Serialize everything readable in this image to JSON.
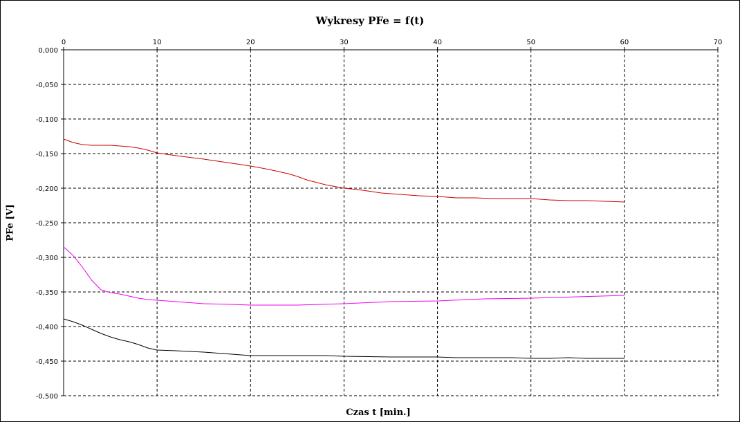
{
  "chart_data": {
    "type": "line",
    "title": "Wykresy PFe = f(t)",
    "xlabel": "Czas t  [min.]",
    "ylabel": "PFe  [V]",
    "xlim": [
      0,
      70
    ],
    "ylim": [
      -0.5,
      0
    ],
    "x_ticks": [
      "0",
      "10",
      "20",
      "30",
      "40",
      "50",
      "60",
      "70"
    ],
    "y_ticks": [
      "0,000",
      "-0,050",
      "-0,100",
      "-0,150",
      "-0,200",
      "-0,250",
      "-0,300",
      "-0,350",
      "-0,400",
      "-0,450",
      "-0,500"
    ],
    "grid": true,
    "x_axis_position": "top",
    "series": [
      {
        "color": "#cc0000",
        "x": [
          0,
          1,
          2,
          3,
          4,
          5,
          6,
          7,
          8,
          9,
          10,
          12,
          15,
          18,
          20,
          22,
          24,
          25,
          26,
          28,
          30,
          32,
          34,
          36,
          38,
          40,
          42,
          44,
          46,
          48,
          50,
          52,
          54,
          56,
          58,
          60
        ],
        "y": [
          -0.129,
          -0.134,
          -0.137,
          -0.138,
          -0.138,
          -0.138,
          -0.139,
          -0.14,
          -0.142,
          -0.145,
          -0.149,
          -0.153,
          -0.158,
          -0.164,
          -0.168,
          -0.173,
          -0.179,
          -0.183,
          -0.188,
          -0.195,
          -0.2,
          -0.203,
          -0.207,
          -0.209,
          -0.211,
          -0.212,
          -0.214,
          -0.214,
          -0.215,
          -0.215,
          -0.215,
          -0.217,
          -0.218,
          -0.218,
          -0.219,
          -0.22
        ]
      },
      {
        "color": "#ee00ee",
        "x": [
          0,
          1,
          2,
          3,
          4,
          5,
          6,
          7,
          8,
          9,
          10,
          12,
          15,
          18,
          20,
          25,
          30,
          35,
          40,
          45,
          50,
          55,
          60
        ],
        "y": [
          -0.285,
          -0.297,
          -0.314,
          -0.333,
          -0.347,
          -0.351,
          -0.353,
          -0.356,
          -0.359,
          -0.361,
          -0.362,
          -0.364,
          -0.367,
          -0.368,
          -0.369,
          -0.369,
          -0.367,
          -0.364,
          -0.363,
          -0.36,
          -0.359,
          -0.357,
          -0.355
        ]
      },
      {
        "color": "#000000",
        "x": [
          0,
          1,
          2,
          3,
          4,
          5,
          6,
          7,
          8,
          9,
          10,
          12,
          15,
          18,
          20,
          25,
          28,
          30,
          35,
          40,
          42,
          45,
          48,
          50,
          52,
          54,
          56,
          58,
          60
        ],
        "y": [
          -0.389,
          -0.393,
          -0.398,
          -0.404,
          -0.41,
          -0.415,
          -0.419,
          -0.422,
          -0.426,
          -0.431,
          -0.434,
          -0.435,
          -0.437,
          -0.44,
          -0.442,
          -0.442,
          -0.442,
          -0.443,
          -0.444,
          -0.444,
          -0.445,
          -0.445,
          -0.445,
          -0.446,
          -0.446,
          -0.445,
          -0.446,
          -0.446,
          -0.446
        ]
      }
    ]
  }
}
